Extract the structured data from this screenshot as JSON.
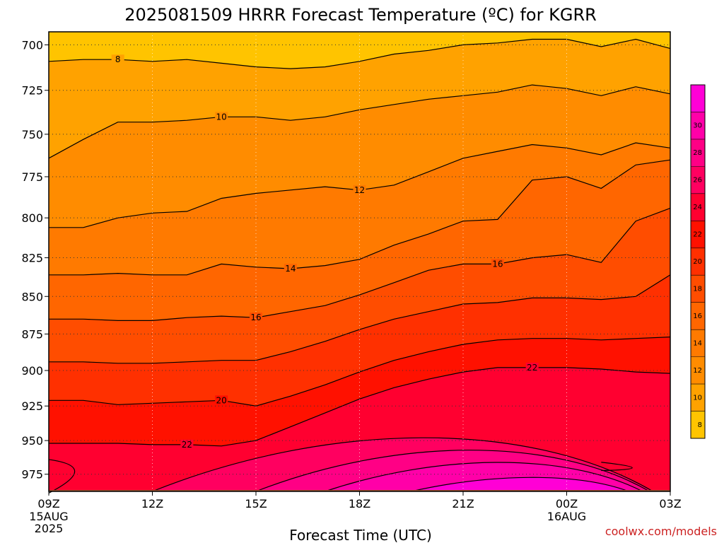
{
  "chart_data": {
    "type": "heatmap",
    "title": "2025081509 HRRR Forecast Temperature (ºC) for KGRR",
    "xlabel": "Forecast Time (UTC)",
    "ylabel": "",
    "x_ticks": [
      "09Z",
      "12Z",
      "15Z",
      "18Z",
      "21Z",
      "00Z",
      "03Z"
    ],
    "x_tick_hours": [
      0,
      3,
      6,
      9,
      12,
      15,
      18
    ],
    "x_sublabels": [
      {
        "hour": 0,
        "lines": [
          "15AUG",
          "2025"
        ]
      },
      {
        "hour": 15,
        "lines": [
          "16AUG"
        ]
      }
    ],
    "xlim": [
      0,
      18
    ],
    "y_ticks": [
      700,
      725,
      750,
      775,
      800,
      825,
      850,
      875,
      900,
      925,
      950,
      975
    ],
    "ylim": [
      693,
      988
    ],
    "y_scale": "log-pressure",
    "grid": true,
    "colorbar": {
      "levels": [
        6,
        8,
        10,
        12,
        14,
        16,
        18,
        20,
        22,
        24,
        26,
        28,
        30,
        32
      ],
      "tick_labels": [
        "8",
        "10",
        "12",
        "14",
        "16",
        "18",
        "20",
        "22",
        "24",
        "26",
        "28",
        "30"
      ],
      "colors": [
        "#ffc400",
        "#ffa200",
        "#ff8c00",
        "#ff7a00",
        "#ff6600",
        "#ff4d00",
        "#ff3000",
        "#ff1100",
        "#ff0030",
        "#ff0060",
        "#ff0085",
        "#ff00a8",
        "#ff00d6"
      ],
      "placement": "right"
    },
    "contour_levels": [
      8,
      10,
      12,
      14,
      16,
      18,
      20,
      22,
      24,
      26,
      28,
      30
    ],
    "contour_labels": [
      {
        "level": 8,
        "hour": 2.0
      },
      {
        "level": 10,
        "hour": 5.0
      },
      {
        "level": 12,
        "hour": 9.0
      },
      {
        "level": 14,
        "hour": 7.0
      },
      {
        "level": 16,
        "hour": 6.0
      },
      {
        "level": 16,
        "hour": 13.0
      },
      {
        "level": 20,
        "hour": 5.0
      },
      {
        "level": 22,
        "hour": 4.0
      },
      {
        "level": 22,
        "hour": 14.0
      }
    ],
    "surface_pressure_hpa": 988,
    "surface_color": "#a0522d",
    "series": [
      {
        "level": 8,
        "hours": [
          0,
          1,
          2,
          3,
          4,
          5,
          6,
          7,
          8,
          9,
          10,
          11,
          12,
          13,
          14,
          15,
          16,
          17,
          18
        ],
        "pressure": [
          709,
          708,
          708,
          709,
          708,
          710,
          712,
          713,
          712,
          709,
          705,
          703,
          700,
          699,
          697,
          697,
          701,
          697,
          702
        ]
      },
      {
        "level": 10,
        "hours": [
          0,
          1,
          2,
          3,
          4,
          5,
          6,
          7,
          8,
          9,
          10,
          11,
          12,
          13,
          14,
          15,
          16,
          17,
          18
        ],
        "pressure": [
          764,
          753,
          743,
          743,
          742,
          740,
          740,
          742,
          740,
          736,
          733,
          730,
          728,
          726,
          722,
          724,
          728,
          723,
          727
        ]
      },
      {
        "level": 12,
        "hours": [
          0,
          1,
          2,
          3,
          4,
          5,
          6,
          7,
          8,
          9,
          10,
          11,
          12,
          13,
          14,
          15,
          16,
          17,
          18
        ],
        "pressure": [
          806,
          806,
          800,
          797,
          796,
          788,
          785,
          783,
          781,
          783,
          780,
          772,
          764,
          760,
          756,
          758,
          762,
          755,
          758
        ]
      },
      {
        "level": 14,
        "hours": [
          0,
          1,
          2,
          3,
          4,
          5,
          6,
          7,
          8,
          9,
          10,
          11,
          12,
          13,
          14,
          15,
          16,
          17,
          18
        ],
        "pressure": [
          836,
          836,
          835,
          836,
          836,
          829,
          831,
          832,
          830,
          826,
          817,
          810,
          802,
          801,
          777,
          775,
          782,
          768,
          765
        ]
      },
      {
        "level": 16,
        "hours": [
          0,
          1,
          2,
          3,
          4,
          5,
          6,
          7,
          8,
          9,
          10,
          11,
          12,
          13,
          14,
          15,
          16,
          17,
          18
        ],
        "pressure": [
          865,
          865,
          866,
          866,
          864,
          863,
          864,
          860,
          856,
          849,
          841,
          833,
          829,
          829,
          825,
          823,
          828,
          802,
          794
        ]
      },
      {
        "level": 18,
        "hours": [
          0,
          1,
          2,
          3,
          4,
          5,
          6,
          7,
          8,
          9,
          10,
          11,
          12,
          13,
          14,
          15,
          16,
          17,
          18
        ],
        "pressure": [
          894,
          894,
          895,
          895,
          894,
          893,
          893,
          887,
          880,
          872,
          865,
          860,
          855,
          854,
          851,
          851,
          852,
          850,
          836
        ]
      },
      {
        "level": 20,
        "hours": [
          0,
          1,
          2,
          3,
          4,
          5,
          6,
          7,
          8,
          9,
          10,
          11,
          12,
          13,
          14,
          15,
          16,
          17,
          18
        ],
        "pressure": [
          921,
          921,
          924,
          923,
          922,
          921,
          925,
          918,
          910,
          901,
          893,
          887,
          882,
          879,
          878,
          878,
          879,
          878,
          877
        ]
      },
      {
        "level": 22,
        "hours": [
          0,
          1,
          2,
          3,
          4,
          5,
          6,
          7,
          8,
          9,
          10,
          11,
          12,
          13,
          14,
          15,
          16,
          17,
          18
        ],
        "pressure": [
          952,
          952,
          952,
          953,
          953,
          954,
          950,
          940,
          930,
          920,
          912,
          906,
          901,
          898,
          898,
          898,
          899,
          901,
          902
        ]
      }
    ]
  },
  "credit": "coolwx.com/models"
}
